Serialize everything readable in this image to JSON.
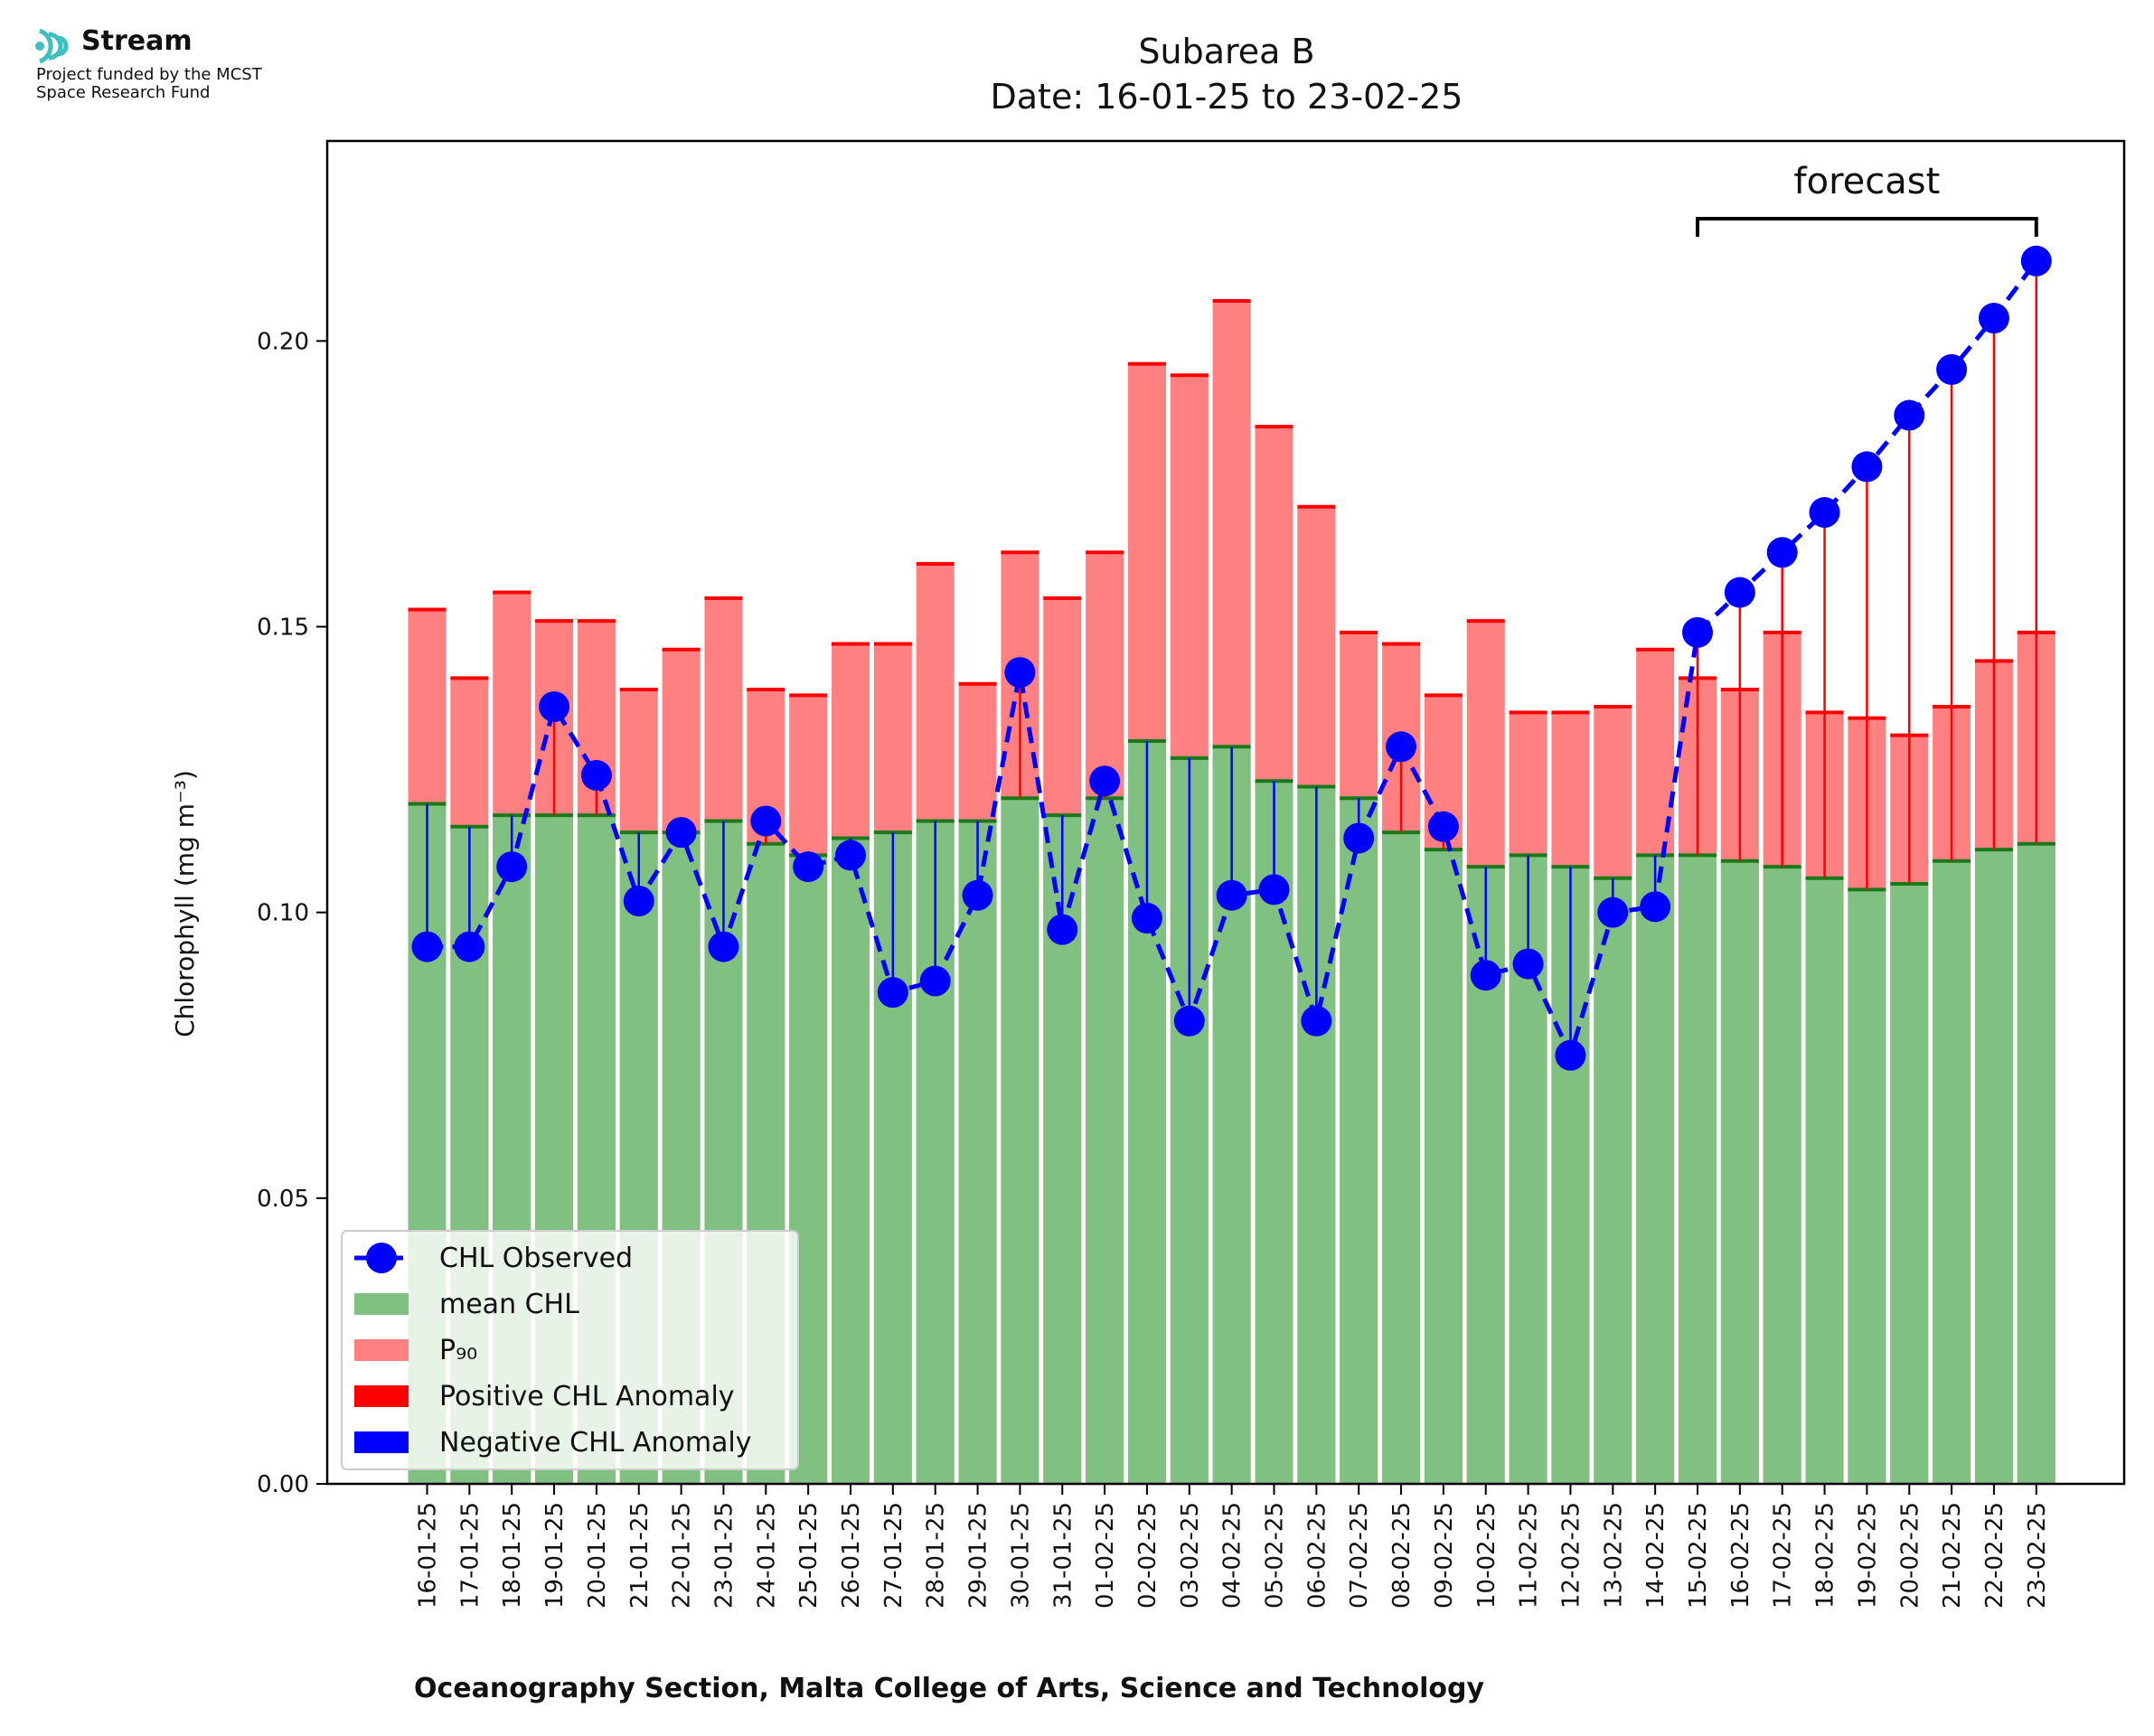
{
  "logo": {
    "name": "Stream",
    "line1": "Project funded by the MCST",
    "line2": "Space Research Fund",
    "accent_color": "#3dbfbf"
  },
  "chart_data": {
    "type": "bar",
    "title": "Subarea B",
    "subtitle": "Date: 16-01-25 to 23-02-25",
    "xlabel": "Oceanography Section, Malta College of Arts, Science and Technology",
    "ylabel": "Chlorophyll (mg m⁻³)",
    "ylim": [
      0,
      0.235
    ],
    "yticks": [
      "0.00",
      "0.05",
      "0.10",
      "0.15",
      "0.20"
    ],
    "grid": false,
    "legend_placement": "lower-left",
    "annotation": {
      "text": "forecast",
      "from": "15-02-25",
      "to": "23-02-25"
    },
    "categories": [
      "16-01-25",
      "17-01-25",
      "18-01-25",
      "19-01-25",
      "20-01-25",
      "21-01-25",
      "22-01-25",
      "23-01-25",
      "24-01-25",
      "25-01-25",
      "26-01-25",
      "27-01-25",
      "28-01-25",
      "29-01-25",
      "30-01-25",
      "31-01-25",
      "01-02-25",
      "02-02-25",
      "03-02-25",
      "04-02-25",
      "05-02-25",
      "06-02-25",
      "07-02-25",
      "08-02-25",
      "09-02-25",
      "10-02-25",
      "11-02-25",
      "12-02-25",
      "13-02-25",
      "14-02-25",
      "15-02-25",
      "16-02-25",
      "17-02-25",
      "18-02-25",
      "19-02-25",
      "20-02-25",
      "21-02-25",
      "22-02-25",
      "23-02-25"
    ],
    "series": [
      {
        "name": "CHL Observed",
        "kind": "line",
        "color": "#0000ff",
        "values": [
          0.094,
          0.094,
          0.108,
          0.136,
          0.124,
          0.102,
          0.114,
          0.094,
          0.116,
          0.108,
          0.11,
          0.086,
          0.088,
          0.103,
          0.142,
          0.097,
          0.123,
          0.099,
          0.081,
          0.103,
          0.104,
          0.081,
          0.113,
          0.129,
          0.115,
          0.089,
          0.091,
          0.075,
          0.1,
          0.101,
          0.149,
          0.156,
          0.163,
          0.17,
          0.178,
          0.187,
          0.195,
          0.204,
          0.214
        ]
      },
      {
        "name": "mean CHL",
        "kind": "bar",
        "color": "#80c080",
        "values": [
          0.119,
          0.115,
          0.117,
          0.117,
          0.117,
          0.114,
          0.114,
          0.116,
          0.112,
          0.11,
          0.113,
          0.114,
          0.116,
          0.116,
          0.12,
          0.117,
          0.12,
          0.13,
          0.127,
          0.129,
          0.123,
          0.122,
          0.12,
          0.114,
          0.111,
          0.108,
          0.11,
          0.108,
          0.106,
          0.11,
          0.11,
          0.109,
          0.108,
          0.106,
          0.104,
          0.105,
          0.109,
          0.111,
          0.112
        ]
      },
      {
        "name": "P₉₀",
        "kind": "bar",
        "color": "#ff8080",
        "values": [
          0.153,
          0.141,
          0.156,
          0.151,
          0.151,
          0.139,
          0.146,
          0.155,
          0.139,
          0.138,
          0.147,
          0.147,
          0.161,
          0.14,
          0.163,
          0.155,
          0.163,
          0.196,
          0.194,
          0.207,
          0.185,
          0.171,
          0.149,
          0.147,
          0.138,
          0.151,
          0.135,
          0.135,
          0.136,
          0.146,
          0.141,
          0.139,
          0.149,
          0.135,
          0.134,
          0.131,
          0.136,
          0.144,
          0.149
        ]
      },
      {
        "name": "Positive CHL Anomaly",
        "kind": "errorbar",
        "color": "#ff0000"
      },
      {
        "name": "Negative CHL Anomaly",
        "kind": "errorbar",
        "color": "#0000ff"
      }
    ]
  }
}
